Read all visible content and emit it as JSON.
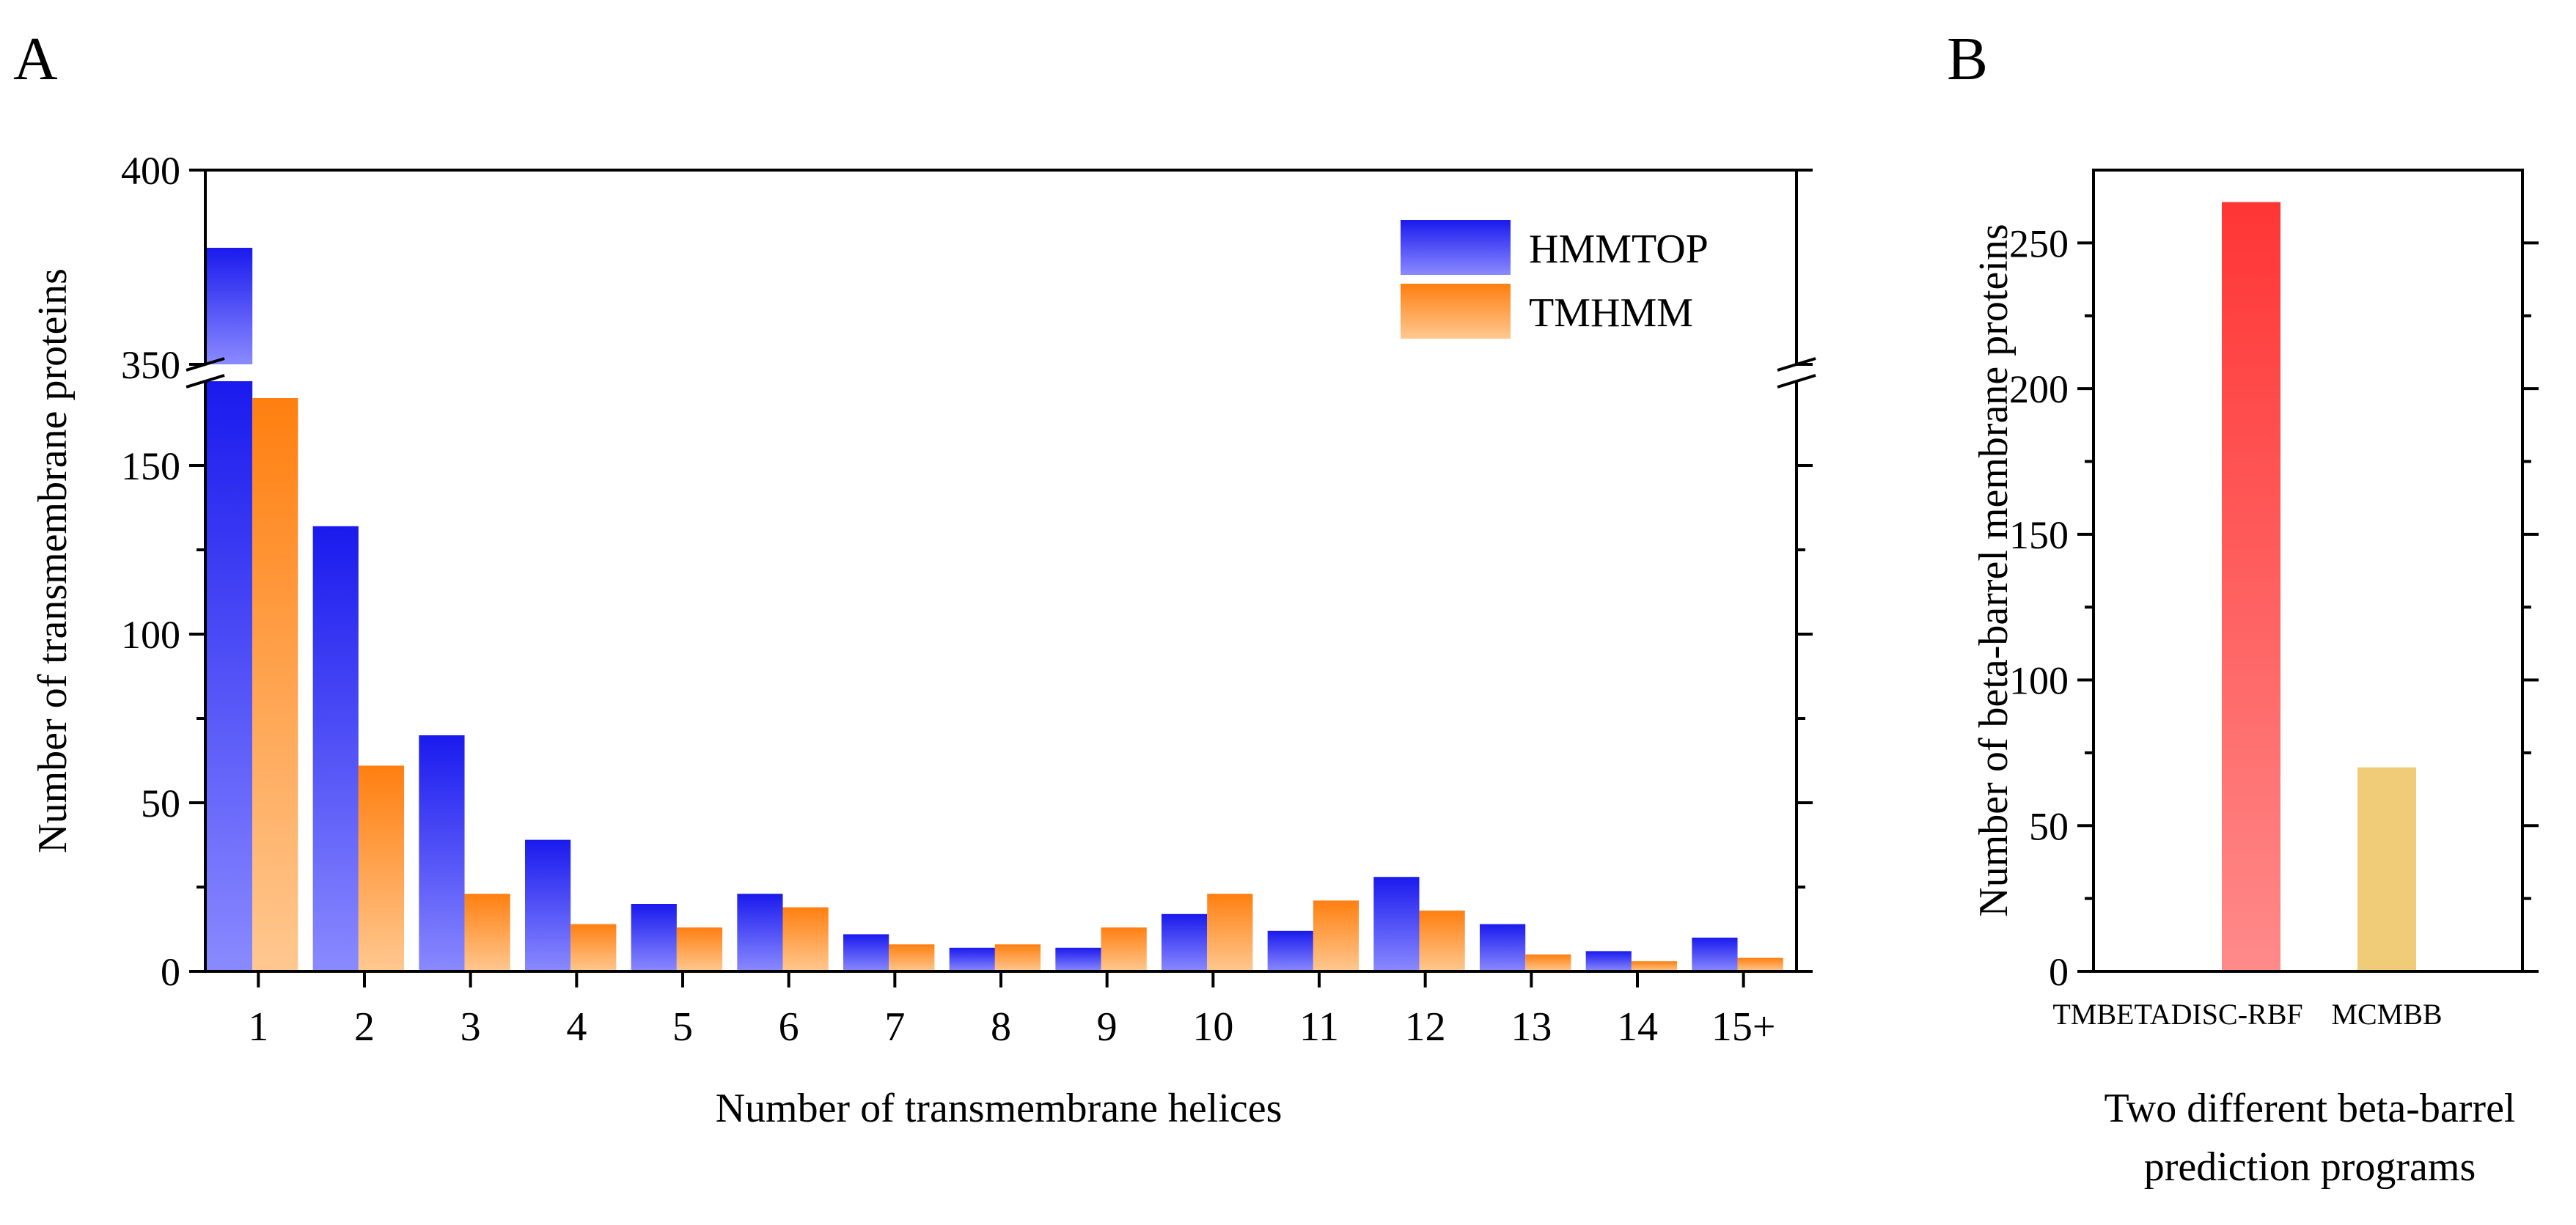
{
  "chart_data": [
    {
      "panel_label": "A",
      "type": "bar",
      "xlabel": "Number of transmembrane helices",
      "ylabel": "Number of transmembrane proteins",
      "categories": [
        "1",
        "2",
        "3",
        "4",
        "5",
        "6",
        "7",
        "8",
        "9",
        "10",
        "11",
        "12",
        "13",
        "14",
        "15+"
      ],
      "series": [
        {
          "name": "HMMTOP",
          "values": [
            380,
            132,
            70,
            39,
            20,
            23,
            11,
            7,
            7,
            17,
            12,
            28,
            14,
            6,
            10
          ]
        },
        {
          "name": "TMHMM",
          "values": [
            170,
            61,
            23,
            14,
            13,
            19,
            8,
            8,
            13,
            23,
            21,
            18,
            5,
            3,
            4
          ]
        }
      ],
      "y_axis_break": {
        "lower_range": [
          0,
          175
        ],
        "upper_range": [
          350,
          400
        ]
      },
      "yticks_lower": [
        0,
        50,
        100,
        150
      ],
      "yticks_upper": [
        350,
        400
      ],
      "legend_position": "top-right",
      "grid": false
    },
    {
      "panel_label": "B",
      "type": "bar",
      "xlabel": "Two different beta-barrel prediction programs",
      "ylabel": "Number of beta-barrel membrane proteins",
      "categories": [
        "TMBETADISC-RBF",
        "MCMBB"
      ],
      "values": [
        264,
        70
      ],
      "ylim": [
        0,
        275
      ],
      "yticks": [
        0,
        50,
        100,
        150,
        200,
        250
      ],
      "grid": false
    }
  ],
  "colors": {
    "hmmtop_top": "#1a1aee",
    "hmmtop_bottom": "#8a8aff",
    "tmhmm_top": "#ff7f10",
    "tmhmm_bottom": "#ffc890",
    "tmbetadisc_top": "#ff3535",
    "tmbetadisc_bottom": "#ff8a8a",
    "mcmbb": "#f0cc78"
  }
}
